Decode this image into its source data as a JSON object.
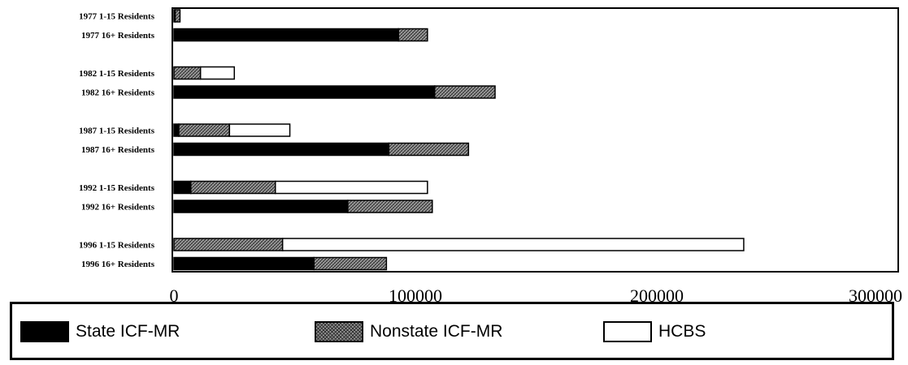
{
  "chart_data": {
    "type": "bar",
    "orientation": "horizontal",
    "stacked": true,
    "categories": [
      "1977 1-15 Residents",
      "1977 16+ Residents",
      "1982 1-15 Residents",
      "1982 16+ Residents",
      "1987 1-15 Residents",
      "1987 16+ Residents",
      "1992 1-15 Residents",
      "1992 16+ Residents",
      "1996 1-15 Residents",
      "1996 16+ Residents"
    ],
    "series": [
      {
        "name": "State ICF-MR",
        "values": [
          500,
          93000,
          0,
          108000,
          2000,
          89000,
          7000,
          72000,
          0,
          58000
        ]
      },
      {
        "name": "Nonstate ICF-MR",
        "values": [
          2000,
          12000,
          11000,
          25000,
          21000,
          33000,
          35000,
          35000,
          45000,
          30000
        ]
      },
      {
        "name": "HCBS",
        "values": [
          0,
          0,
          14000,
          0,
          25000,
          0,
          63000,
          0,
          191000,
          0
        ]
      }
    ],
    "xticks": [
      "0",
      "100000",
      "200000",
      "300000"
    ],
    "xlim": [
      0,
      300000
    ],
    "title": "",
    "xlabel": "",
    "ylabel": "",
    "legend_position": "bottom",
    "grid": false,
    "colors": {
      "state": "#000000",
      "nonstate": "#9a9a9a",
      "hcbs": "#ffffff"
    }
  },
  "legend": {
    "state_label": "State ICF-MR",
    "nonstate_label": "Nonstate ICF-MR",
    "hcbs_label": "HCBS"
  }
}
